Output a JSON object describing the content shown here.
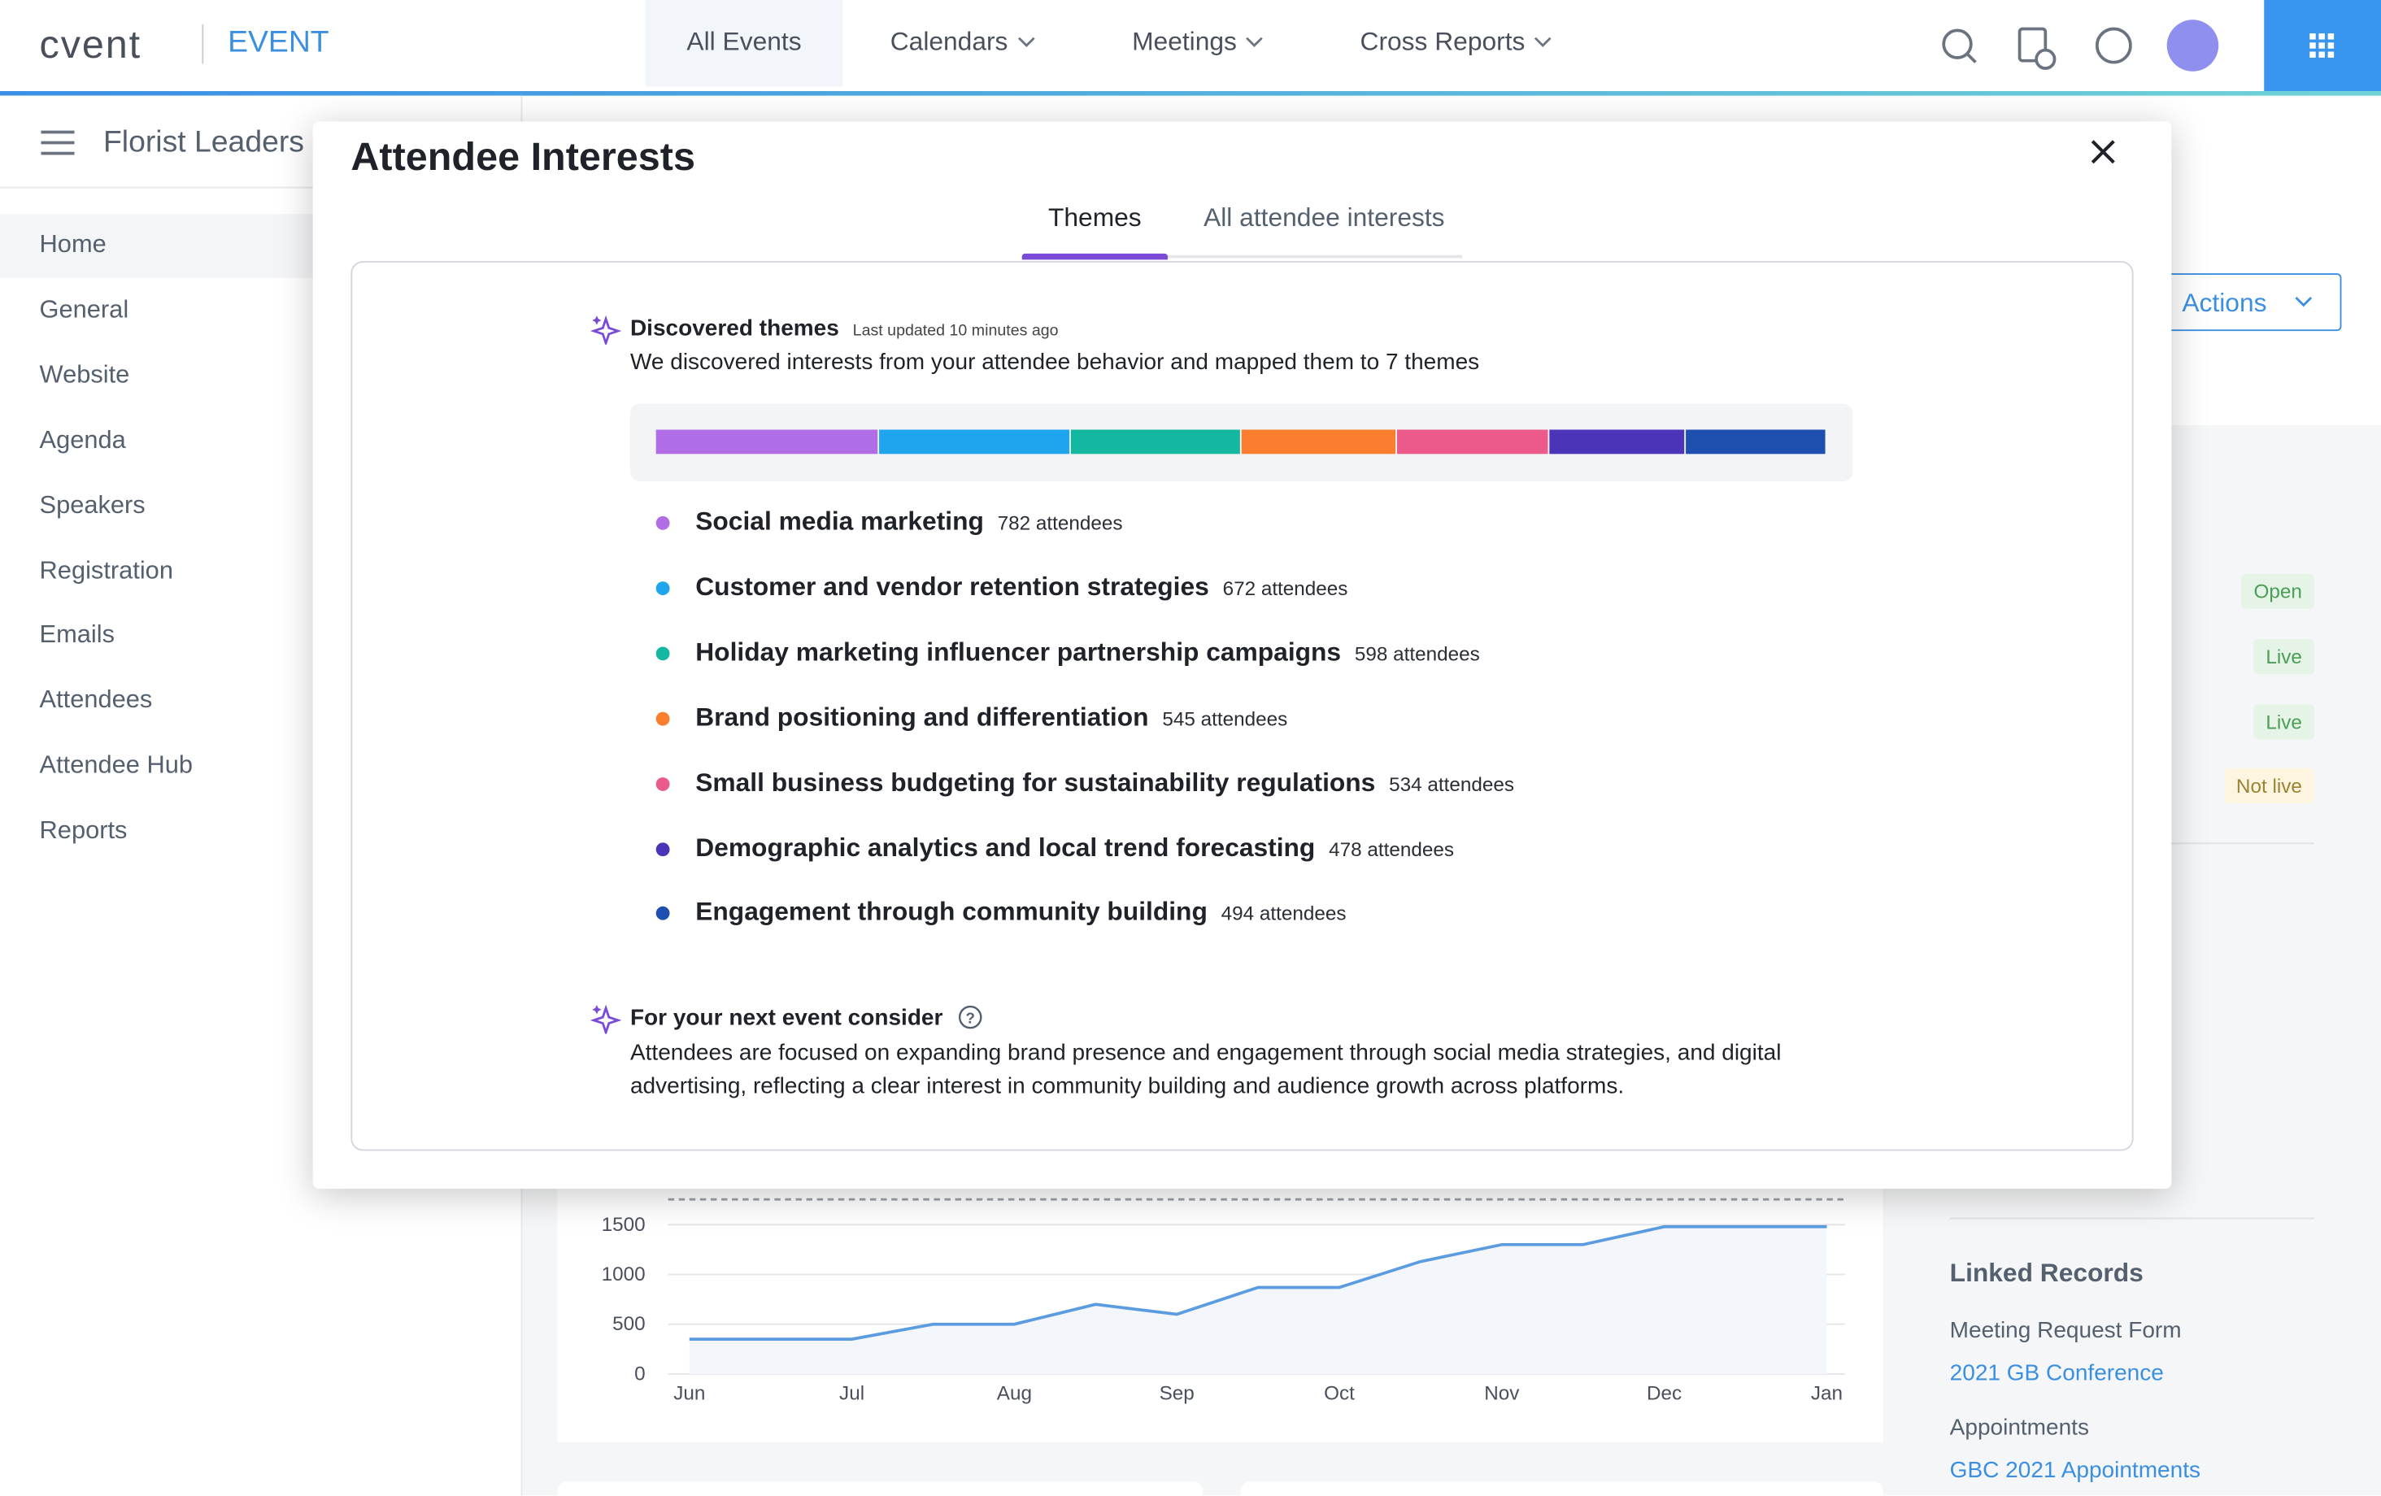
{
  "header": {
    "logo": "cvent",
    "product": "EVENT",
    "nav": [
      "All Events",
      "Calendars",
      "Meetings",
      "Cross Reports"
    ]
  },
  "sidebar": {
    "event_name": "Florist Leaders",
    "items": [
      "Home",
      "General",
      "Website",
      "Agenda",
      "Speakers",
      "Registration",
      "Emails",
      "Attendees",
      "Attendee Hub",
      "Reports"
    ]
  },
  "background": {
    "actions": "Actions",
    "statuses": [
      "Open",
      "Live",
      "Live",
      "Not live"
    ],
    "linked_records": {
      "title": "Linked Records",
      "groups": [
        {
          "label": "Meeting Request Form",
          "link": "2021 GB Conference"
        },
        {
          "label": "Appointments",
          "link": "GBC 2021 Appointments"
        }
      ]
    }
  },
  "chart_data": {
    "type": "line",
    "x": [
      0,
      1,
      1.5,
      2,
      2.5,
      3,
      3.5,
      4,
      4.5,
      5,
      5.5,
      6,
      7
    ],
    "values": [
      350,
      350,
      500,
      500,
      700,
      600,
      870,
      870,
      1130,
      1300,
      1300,
      1480,
      1480
    ],
    "color": "#5b9be0",
    "xlim": [
      0,
      7
    ],
    "xticks": [
      {
        "value": 0,
        "label": "Jun"
      },
      {
        "value": 1,
        "label": "Jul"
      },
      {
        "value": 2,
        "label": "Aug"
      },
      {
        "value": 3,
        "label": "Sep"
      },
      {
        "value": 4,
        "label": "Oct"
      },
      {
        "value": 5,
        "label": "Nov"
      },
      {
        "value": 6,
        "label": "Dec"
      },
      {
        "value": 7,
        "label": "Jan"
      }
    ],
    "ylim": [
      0,
      1800
    ],
    "yticks": [
      0,
      500,
      1000,
      1500
    ],
    "grid": true
  },
  "modal": {
    "title": "Attendee Interests",
    "tabs": [
      "Themes",
      "All attendee interests"
    ],
    "discovered": {
      "title": "Discovered themes",
      "updated": "Last updated 10 minutes ago",
      "description": "We discovered interests from your attendee behavior and mapped them to 7 themes"
    },
    "themes": [
      {
        "name": "Social media marketing",
        "attendees": 782,
        "attendees_label": "782 attendees",
        "color": "#b06de6"
      },
      {
        "name": "Customer and vendor retention strategies",
        "attendees": 672,
        "attendees_label": "672 attendees",
        "color": "#1ea5ee"
      },
      {
        "name": "Holiday marketing influencer partnership campaigns",
        "attendees": 598,
        "attendees_label": "598 attendees",
        "color": "#14b8a0"
      },
      {
        "name": "Brand positioning and differentiation",
        "attendees": 545,
        "attendees_label": "545 attendees",
        "color": "#fb7d2e"
      },
      {
        "name": "Small business budgeting for sustainability regulations",
        "attendees": 534,
        "attendees_label": "534 attendees",
        "color": "#eb5a8a"
      },
      {
        "name": "Demographic analytics and local trend forecasting",
        "attendees": 478,
        "attendees_label": "478 attendees",
        "color": "#4c34b8"
      },
      {
        "name": "Engagement through community building",
        "attendees": 494,
        "attendees_label": "494 attendees",
        "color": "#1e4fb0"
      }
    ],
    "suggestion": {
      "title": "For your next event consider",
      "text": "Attendees are focused on expanding brand presence and engagement through social media strategies, and digital advertising, reflecting a clear interest in community building and audience growth across platforms."
    }
  }
}
